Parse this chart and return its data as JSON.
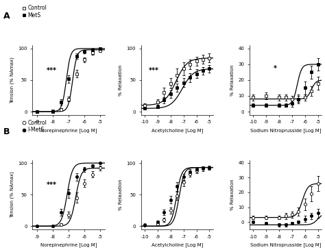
{
  "panel_A": {
    "legend_labels": [
      "Control",
      "MetS"
    ],
    "plot1": {
      "xlabel": "Norepinephrine [Log M]",
      "ylabel": "Tension (% NAmax)",
      "ylim": [
        -5,
        105
      ],
      "xlim": [
        -9.3,
        -4.7
      ],
      "xticks": [
        -9,
        -8,
        -7,
        -6,
        -5
      ],
      "yticks": [
        0,
        50,
        100
      ],
      "annotation": "***",
      "ann_x": -8.1,
      "ann_y": 62,
      "control_x": [
        -9,
        -8,
        -7.5,
        -7,
        -6.5,
        -6,
        -5.5,
        -5
      ],
      "control_y": [
        0,
        1,
        3,
        20,
        60,
        82,
        93,
        97
      ],
      "control_yerr": [
        0.5,
        0.5,
        2,
        4,
        6,
        4,
        3,
        2
      ],
      "mets_x": [
        -9,
        -8,
        -7.5,
        -7,
        -6.5,
        -6,
        -5.5,
        -5
      ],
      "mets_y": [
        0,
        0,
        15,
        52,
        88,
        95,
        98,
        100
      ],
      "mets_yerr": [
        0.5,
        0.5,
        4,
        6,
        4,
        3,
        2,
        1
      ],
      "ec50_control": -6.75,
      "ec50_mets": -7.15,
      "hill_control": 3.2,
      "hill_mets": 3.2,
      "top_control": 98,
      "top_mets": 100
    },
    "plot2": {
      "xlabel": "Acetylcholine [Log M]",
      "ylabel": "% Relaxation",
      "ylim": [
        -5,
        105
      ],
      "xlim": [
        -10.3,
        -4.7
      ],
      "xticks": [
        -10,
        -9,
        -8,
        -7,
        -6,
        -5
      ],
      "yticks": [
        0,
        50,
        100
      ],
      "annotation": "***",
      "ann_x": -9.3,
      "ann_y": 62,
      "control_x": [
        -10,
        -9,
        -8.5,
        -8,
        -7.5,
        -7,
        -6.5,
        -6,
        -5.5,
        -5
      ],
      "control_y": [
        10,
        15,
        30,
        45,
        58,
        68,
        75,
        80,
        83,
        85
      ],
      "control_yerr": [
        3,
        5,
        8,
        8,
        10,
        10,
        8,
        7,
        7,
        7
      ],
      "mets_x": [
        -10,
        -9,
        -8.5,
        -8,
        -7.5,
        -7,
        -6.5,
        -6,
        -5.5,
        -5
      ],
      "mets_y": [
        5,
        8,
        18,
        28,
        38,
        46,
        54,
        60,
        65,
        68
      ],
      "mets_yerr": [
        2,
        3,
        5,
        6,
        7,
        7,
        7,
        7,
        6,
        6
      ],
      "ec50_control": -7.6,
      "ec50_mets": -7.1,
      "hill_control": 1.0,
      "hill_mets": 1.0,
      "top_control": 85,
      "bottom_control": 10,
      "top_mets": 68,
      "bottom_mets": 5
    },
    "plot3": {
      "xlabel": "Sodium Nitroprusside [Log M]",
      "ylabel": "% Relaxation",
      "ylim": [
        -2,
        42
      ],
      "xlim": [
        -10.3,
        -4.7
      ],
      "xticks": [
        -10,
        -9,
        -8,
        -7,
        -6,
        -5
      ],
      "yticks": [
        0,
        10,
        20,
        30,
        40
      ],
      "annotation": "*",
      "ann_x": -8.3,
      "ann_y": 26,
      "control_x": [
        -10,
        -9,
        -8,
        -7.5,
        -7,
        -6.5,
        -6,
        -5.5,
        -5
      ],
      "control_y": [
        9,
        10,
        9,
        9,
        8,
        8,
        9,
        13,
        18
      ],
      "control_yerr": [
        2,
        2,
        2,
        2,
        2,
        2,
        2,
        3,
        4
      ],
      "mets_x": [
        -10,
        -9,
        -8,
        -7.5,
        -7,
        -6.5,
        -6,
        -5.5,
        -5
      ],
      "mets_y": [
        4,
        4,
        4,
        4,
        5,
        8,
        15,
        25,
        30
      ],
      "mets_yerr": [
        1,
        1,
        1,
        1,
        2,
        3,
        4,
        4,
        4
      ],
      "ec50_control_snp": -5.5,
      "ec50_mets_snp": -6.6,
      "hill_snp": 2.5,
      "top_control_snp": 20,
      "bottom_control_snp": 8,
      "top_mets_snp": 30,
      "bottom_mets_snp": 4
    }
  },
  "panel_B": {
    "legend_labels": [
      "Control",
      "I-MetS"
    ],
    "plot1": {
      "xlabel": "Norepinephrine [Log M]",
      "ylabel": "Tension (% NAmax)",
      "ylim": [
        -5,
        105
      ],
      "xlim": [
        -9.3,
        -4.7
      ],
      "xticks": [
        -9,
        -8,
        -7,
        -6,
        -5
      ],
      "yticks": [
        0,
        50,
        100
      ],
      "annotation": "***",
      "ann_x": -8.1,
      "ann_y": 62,
      "control_x": [
        -9,
        -8,
        -7.5,
        -7,
        -6.5,
        -6,
        -5.5,
        -5
      ],
      "control_y": [
        0,
        0,
        3,
        18,
        45,
        68,
        82,
        92
      ],
      "control_yerr": [
        0.5,
        0.5,
        2,
        5,
        8,
        6,
        5,
        4
      ],
      "imets_x": [
        -9,
        -8,
        -7.5,
        -7,
        -6.5,
        -6,
        -5.5,
        -5
      ],
      "imets_y": [
        0,
        0,
        22,
        52,
        78,
        90,
        96,
        100
      ],
      "imets_yerr": [
        0.5,
        0.5,
        5,
        7,
        6,
        4,
        2,
        1
      ],
      "ec50_control": -6.55,
      "ec50_imets": -7.1,
      "hill_control": 2.5,
      "hill_imets": 2.5,
      "top_control": 92,
      "top_imets": 100
    },
    "plot2": {
      "xlabel": "Acetylcholine [Log M]",
      "ylabel": "% Relaxation",
      "ylim": [
        -5,
        105
      ],
      "xlim": [
        -10.3,
        -4.7
      ],
      "xticks": [
        -10,
        -9,
        -8,
        -7,
        -6,
        -5
      ],
      "yticks": [
        0,
        50,
        100
      ],
      "annotation": "",
      "control_x": [
        -10,
        -9,
        -8.5,
        -8,
        -7.5,
        -7,
        -6.5,
        -6,
        -5.5,
        -5
      ],
      "control_y": [
        2,
        4,
        10,
        25,
        48,
        70,
        83,
        88,
        91,
        92
      ],
      "control_yerr": [
        1,
        2,
        3,
        5,
        7,
        7,
        5,
        4,
        4,
        3
      ],
      "imets_x": [
        -10,
        -9,
        -8.5,
        -8,
        -7.5,
        -7,
        -6.5,
        -6,
        -5.5,
        -5
      ],
      "imets_y": [
        1,
        7,
        22,
        42,
        63,
        78,
        86,
        90,
        92,
        93
      ],
      "imets_yerr": [
        1,
        2,
        4,
        6,
        7,
        5,
        4,
        4,
        3,
        3
      ],
      "ec50_control": -7.35,
      "ec50_imets": -7.55,
      "hill_control": 2.2,
      "hill_imets": 2.2,
      "top_control": 93,
      "top_imets": 93
    },
    "plot3": {
      "xlabel": "Sodium Nitroprusside [Log M]",
      "ylabel": "% Relaxation",
      "ylim": [
        -5,
        42
      ],
      "xlim": [
        -10.3,
        -4.7
      ],
      "xticks": [
        -10,
        -9,
        -8,
        -7,
        -6,
        -5
      ],
      "yticks": [
        0,
        10,
        20,
        30,
        40
      ],
      "annotation": "",
      "control_x": [
        -10,
        -9,
        -8,
        -7.5,
        -7,
        -6.5,
        -6,
        -5.5,
        -5
      ],
      "control_y": [
        3,
        3,
        3,
        4,
        5,
        7,
        12,
        19,
        26
      ],
      "control_yerr": [
        1,
        1,
        1,
        2,
        2,
        3,
        4,
        5,
        5
      ],
      "imets_x": [
        -10,
        -9,
        -8,
        -7.5,
        -7,
        -6.5,
        -6,
        -5.5,
        -5
      ],
      "imets_y": [
        0,
        -1,
        -2,
        -2,
        -1,
        0,
        2,
        4,
        6
      ],
      "imets_yerr": [
        1,
        1,
        1,
        1,
        1,
        1,
        2,
        2,
        3
      ],
      "ec50_control_snp": -6.2,
      "hill_snp": 2.0,
      "top_control_snp": 26,
      "bottom_control_snp": 3
    }
  }
}
